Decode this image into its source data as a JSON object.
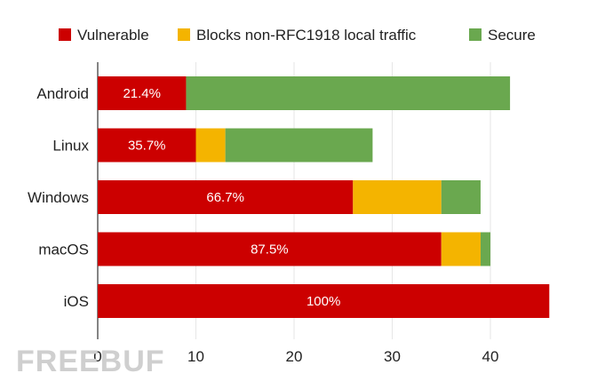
{
  "chart_data": {
    "type": "bar",
    "orientation": "horizontal",
    "stacked": true,
    "categories": [
      "Android",
      "Linux",
      "Windows",
      "macOS",
      "iOS"
    ],
    "series": [
      {
        "name": "Vulnerable",
        "color": "#cc0000",
        "values": [
          9,
          10,
          26,
          35,
          46
        ]
      },
      {
        "name": "Blocks non-RFC1918 local traffic",
        "color": "#f4b400",
        "values": [
          0,
          3,
          9,
          4,
          0
        ]
      },
      {
        "name": "Secure",
        "color": "#6aa84f",
        "values": [
          33,
          15,
          4,
          1,
          0
        ]
      }
    ],
    "data_labels": [
      "21.4%",
      "35.7%",
      "66.7%",
      "87.5%",
      "100%"
    ],
    "xticks": [
      0,
      10,
      20,
      30,
      40
    ],
    "xlim": [
      0,
      46
    ],
    "grid": true,
    "legend": "top",
    "title": "",
    "xlabel": "",
    "ylabel": ""
  },
  "watermark": "FREEBUF"
}
